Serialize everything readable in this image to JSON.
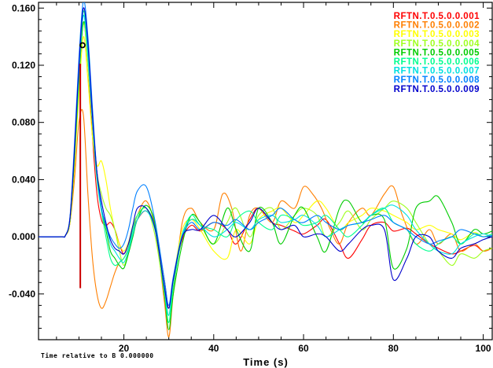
{
  "chart_data": {
    "type": "line",
    "xlabel": "Time (s)",
    "ylabel": "",
    "note": "Time relative to B 0.000000",
    "xlim": [
      1,
      102
    ],
    "ylim": [
      -0.072,
      0.164
    ],
    "x_ticks": [
      20,
      40,
      60,
      80,
      100
    ],
    "y_ticks": [
      -0.04,
      0.0,
      0.04,
      0.08,
      0.12,
      0.16
    ],
    "y_tick_labels": [
      "-0.040",
      "0.000",
      "0.040",
      "0.080",
      "0.120",
      "0.160"
    ],
    "grid": false,
    "legend_position": "top-right",
    "series": [
      {
        "name": "RFTN.T.0.5.0.0.001",
        "color": "#ff0000",
        "x": [
          1,
          6,
          7,
          8,
          9,
          10,
          11,
          12,
          13,
          14,
          15,
          16,
          17,
          18,
          19,
          20,
          21,
          22,
          23,
          25,
          27,
          29,
          30,
          31,
          33,
          35,
          37,
          40,
          43,
          45,
          48,
          50,
          53,
          55,
          58,
          60,
          63,
          65,
          68,
          70,
          73,
          75,
          78,
          80,
          83,
          85,
          88,
          90,
          93,
          95,
          98,
          100,
          102
        ],
        "y": [
          0,
          0,
          0.001,
          0.01,
          0.05,
          0.11,
          0.15,
          0.12,
          0.07,
          0.03,
          0.012,
          0.008,
          0.01,
          0.005,
          -0.005,
          -0.012,
          -0.005,
          0.005,
          0.012,
          0.018,
          0.005,
          -0.03,
          -0.05,
          -0.03,
          -0.002,
          0.008,
          0.004,
          0.01,
          0.005,
          -0.005,
          0.012,
          0.02,
          0.01,
          0.008,
          0.004,
          0.002,
          0.008,
          0.012,
          -0.005,
          -0.015,
          -0.002,
          0.008,
          0.01,
          0.004,
          0.006,
          0.002,
          -0.005,
          -0.008,
          -0.012,
          -0.01,
          -0.006,
          -0.01,
          -0.008
        ]
      },
      {
        "name": "RFTN.T.0.5.0.0.002",
        "color": "#ff7f00",
        "x": [
          1,
          6,
          7,
          8,
          9,
          10,
          11,
          12,
          13,
          14,
          15,
          16,
          17,
          18,
          19,
          20,
          21,
          22,
          23,
          25,
          27,
          29,
          30,
          31,
          33,
          35,
          37,
          40,
          42,
          44,
          46,
          48,
          50,
          53,
          55,
          58,
          60,
          62,
          64,
          66,
          68,
          70,
          73,
          75,
          78,
          80,
          82,
          85,
          88,
          90,
          93,
          95,
          98,
          100,
          102
        ],
        "y": [
          0,
          0,
          0.001,
          0.01,
          0.04,
          0.08,
          0.085,
          0.03,
          -0.015,
          -0.04,
          -0.05,
          -0.045,
          -0.035,
          -0.025,
          -0.018,
          -0.015,
          -0.008,
          0.005,
          0.015,
          0.025,
          0.005,
          -0.045,
          -0.07,
          -0.04,
          0.01,
          0.02,
          0.01,
          0.005,
          0.03,
          0.02,
          -0.01,
          0.015,
          0.02,
          0.01,
          0.025,
          0.02,
          0.035,
          0.03,
          0.02,
          0.005,
          -0.005,
          0.01,
          0.02,
          0.015,
          0.03,
          0.035,
          0.015,
          -0.005,
          0.005,
          -0.005,
          0.002,
          -0.01,
          -0.005,
          -0.01,
          -0.008
        ]
      },
      {
        "name": "RFTN.T.0.5.0.0.003",
        "color": "#ffff00",
        "x": [
          1,
          6,
          7,
          8,
          9,
          10,
          11,
          12,
          13,
          14,
          15,
          16,
          17,
          18,
          19,
          20,
          21,
          22,
          23,
          25,
          27,
          29,
          30,
          31,
          33,
          35,
          37,
          40,
          43,
          45,
          48,
          50,
          53,
          55,
          58,
          60,
          63,
          65,
          68,
          70,
          73,
          75,
          78,
          80,
          83,
          85,
          88,
          90,
          93,
          95,
          98,
          100,
          102
        ],
        "y": [
          0,
          0,
          0.001,
          0.01,
          0.05,
          0.1,
          0.14,
          0.11,
          0.07,
          0.05,
          0.053,
          0.04,
          0.02,
          0.005,
          -0.005,
          -0.01,
          -0.004,
          0.008,
          0.015,
          0.02,
          0.005,
          -0.035,
          -0.055,
          -0.03,
          0.005,
          0.012,
          0.005,
          -0.01,
          -0.015,
          0.005,
          -0.005,
          0.012,
          0.018,
          0.02,
          0.01,
          0.015,
          0.025,
          0.02,
          0.005,
          0.01,
          0.015,
          0.02,
          0.018,
          0.015,
          0.01,
          0.005,
          0.008,
          0.005,
          0.002,
          -0.002,
          0.003,
          0.0,
          0.002
        ]
      },
      {
        "name": "RFTN.T.0.5.0.0.004",
        "color": "#a0ff20",
        "x": [
          1,
          6,
          7,
          8,
          9,
          10,
          11,
          12,
          13,
          14,
          15,
          16,
          17,
          18,
          19,
          20,
          21,
          22,
          23,
          25,
          27,
          29,
          30,
          31,
          33,
          35,
          37,
          40,
          43,
          45,
          48,
          50,
          53,
          55,
          58,
          60,
          63,
          65,
          68,
          70,
          73,
          75,
          78,
          80,
          83,
          85,
          88,
          90,
          93,
          95,
          98,
          100,
          102
        ],
        "y": [
          0,
          0,
          0.001,
          0.012,
          0.055,
          0.11,
          0.15,
          0.12,
          0.08,
          0.045,
          0.03,
          0.02,
          0.015,
          0.005,
          -0.01,
          -0.02,
          -0.01,
          0.005,
          0.015,
          0.02,
          0.0,
          -0.04,
          -0.06,
          -0.035,
          0.0,
          0.012,
          0.008,
          -0.005,
          0.01,
          0.02,
          0.0,
          0.015,
          0.02,
          0.005,
          0.015,
          0.02,
          0.015,
          0.0,
          0.01,
          0.018,
          0.005,
          0.012,
          0.02,
          0.025,
          0.02,
          0.01,
          -0.005,
          -0.01,
          -0.02,
          -0.012,
          -0.015,
          -0.01,
          -0.008
        ]
      },
      {
        "name": "RFTN.T.0.5.0.0.005",
        "color": "#00cc00",
        "x": [
          1,
          6,
          7,
          8,
          9,
          10,
          11,
          12,
          13,
          14,
          15,
          16,
          17,
          18,
          19,
          20,
          21,
          22,
          23,
          25,
          27,
          29,
          30,
          31,
          33,
          35,
          37,
          40,
          43,
          45,
          48,
          50,
          53,
          55,
          58,
          60,
          63,
          65,
          68,
          70,
          73,
          75,
          78,
          80,
          83,
          85,
          88,
          90,
          93,
          95,
          98,
          100,
          102
        ],
        "y": [
          0,
          0,
          0.001,
          0.012,
          0.055,
          0.11,
          0.15,
          0.13,
          0.085,
          0.045,
          0.02,
          0.005,
          -0.01,
          -0.015,
          -0.02,
          -0.022,
          -0.012,
          0.0,
          0.012,
          0.022,
          0.008,
          -0.04,
          -0.065,
          -0.04,
          -0.005,
          0.015,
          0.01,
          -0.005,
          0.02,
          0.005,
          -0.01,
          0.02,
          0.01,
          -0.005,
          0.015,
          0.02,
          0.0,
          -0.01,
          0.02,
          0.025,
          0.01,
          0.015,
          0.012,
          -0.022,
          -0.008,
          0.02,
          0.025,
          0.028,
          0.01,
          -0.005,
          0.005,
          0.002,
          0.004
        ]
      },
      {
        "name": "RFTN.T.0.5.0.0.006",
        "color": "#00ff90",
        "x": [
          1,
          6,
          7,
          8,
          9,
          10,
          11,
          12,
          13,
          14,
          15,
          16,
          17,
          18,
          19,
          20,
          21,
          22,
          23,
          25,
          27,
          29,
          30,
          31,
          33,
          35,
          37,
          40,
          43,
          45,
          48,
          50,
          53,
          55,
          58,
          60,
          63,
          65,
          68,
          70,
          73,
          75,
          78,
          80,
          83,
          85,
          88,
          90,
          93,
          95,
          98,
          100,
          102
        ],
        "y": [
          0,
          0,
          0.001,
          0.013,
          0.06,
          0.12,
          0.158,
          0.13,
          0.08,
          0.04,
          0.018,
          0.0,
          -0.015,
          -0.02,
          -0.018,
          -0.015,
          -0.008,
          0.005,
          0.015,
          0.02,
          0.005,
          -0.038,
          -0.06,
          -0.035,
          0.0,
          0.015,
          0.008,
          0.005,
          0.0,
          0.012,
          0.018,
          0.01,
          0.005,
          0.015,
          0.012,
          0.008,
          0.01,
          0.015,
          0.005,
          0.0,
          0.008,
          0.015,
          0.02,
          0.01,
          0.005,
          -0.005,
          -0.01,
          -0.005,
          0.0,
          -0.005,
          0.002,
          0.0,
          0.002
        ]
      },
      {
        "name": "RFTN.T.0.5.0.0.007",
        "color": "#00e0e0",
        "x": [
          1,
          6,
          7,
          8,
          9,
          10,
          11,
          12,
          13,
          14,
          15,
          16,
          17,
          18,
          19,
          20,
          21,
          22,
          23,
          25,
          27,
          29,
          30,
          31,
          33,
          35,
          37,
          40,
          43,
          45,
          48,
          50,
          53,
          55,
          58,
          60,
          63,
          65,
          68,
          70,
          73,
          75,
          78,
          80,
          83,
          85,
          88,
          90,
          93,
          95,
          98,
          100,
          102
        ],
        "y": [
          0,
          0,
          0.001,
          0.013,
          0.06,
          0.115,
          0.155,
          0.125,
          0.08,
          0.045,
          0.02,
          0.008,
          -0.005,
          -0.01,
          -0.015,
          -0.018,
          -0.01,
          0.002,
          0.012,
          0.018,
          0.004,
          -0.035,
          -0.055,
          -0.03,
          0.002,
          0.012,
          0.008,
          0.0,
          0.005,
          0.01,
          0.005,
          0.012,
          0.015,
          0.01,
          0.012,
          0.015,
          0.008,
          0.0,
          0.005,
          0.008,
          0.01,
          0.015,
          0.02,
          0.022,
          0.015,
          0.005,
          -0.005,
          -0.01,
          -0.012,
          -0.005,
          0.0,
          0.002,
          0.0
        ]
      },
      {
        "name": "RFTN.T.0.5.0.0.008",
        "color": "#0080ff",
        "x": [
          1,
          6,
          7,
          8,
          9,
          10,
          11,
          12,
          13,
          14,
          15,
          16,
          17,
          18,
          19,
          20,
          21,
          22,
          23,
          25,
          27,
          29,
          30,
          31,
          33,
          35,
          37,
          40,
          43,
          45,
          48,
          50,
          53,
          55,
          58,
          60,
          63,
          65,
          68,
          70,
          73,
          75,
          78,
          80,
          83,
          85,
          88,
          90,
          93,
          95,
          98,
          100,
          102
        ],
        "y": [
          0,
          0,
          0.001,
          0.014,
          0.065,
          0.125,
          0.165,
          0.14,
          0.09,
          0.045,
          0.02,
          0.008,
          0.0,
          -0.005,
          -0.008,
          -0.005,
          0.005,
          0.02,
          0.032,
          0.035,
          0.01,
          -0.03,
          -0.048,
          -0.028,
          0.0,
          0.01,
          0.005,
          0.01,
          0.008,
          0.012,
          0.005,
          0.01,
          0.015,
          0.02,
          0.012,
          0.01,
          0.015,
          0.01,
          0.005,
          0.008,
          0.01,
          0.012,
          0.015,
          0.01,
          0.005,
          0.0,
          -0.005,
          -0.003,
          0.0,
          0.005,
          0.002,
          0.0,
          0.001
        ]
      },
      {
        "name": "RFTN.T.0.5.0.0.009",
        "color": "#0000cc",
        "x": [
          1,
          6,
          7,
          8,
          9,
          10,
          11,
          12,
          13,
          14,
          15,
          16,
          17,
          18,
          19,
          20,
          21,
          22,
          23,
          25,
          27,
          29,
          30,
          31,
          33,
          35,
          37,
          40,
          43,
          45,
          48,
          50,
          53,
          55,
          58,
          60,
          63,
          65,
          68,
          70,
          73,
          75,
          78,
          80,
          83,
          85,
          88,
          90,
          93,
          95,
          98,
          100,
          102
        ],
        "y": [
          0,
          0,
          0.001,
          0.013,
          0.06,
          0.12,
          0.16,
          0.135,
          0.085,
          0.045,
          0.025,
          0.01,
          -0.002,
          -0.008,
          -0.01,
          -0.012,
          -0.005,
          0.008,
          0.02,
          0.02,
          0.005,
          -0.035,
          -0.05,
          -0.03,
          0.0,
          0.005,
          0.005,
          0.015,
          0.005,
          0.0,
          0.01,
          0.02,
          0.01,
          0.005,
          0.008,
          0.0,
          0.002,
          0.0,
          -0.01,
          -0.005,
          0.005,
          0.008,
          0.005,
          -0.03,
          -0.015,
          0.0,
          0.0,
          -0.01,
          -0.015,
          -0.008,
          -0.005,
          -0.002,
          0.0
        ]
      }
    ],
    "marker": {
      "label": "o",
      "x": 10.8,
      "y": 0.134,
      "color": "#000000"
    },
    "stem": {
      "x": 10.3,
      "y0": -0.036,
      "y1": 0.121,
      "color": "#cc0000"
    }
  }
}
